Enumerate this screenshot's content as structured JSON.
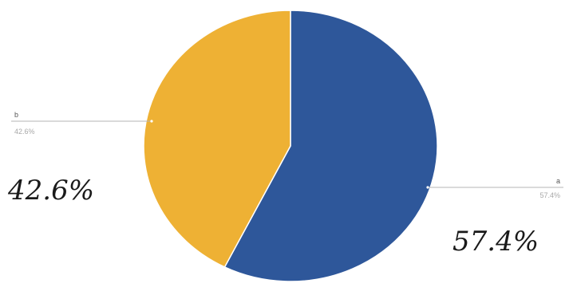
{
  "chart_data": {
    "type": "pie",
    "slices": [
      {
        "label": "a",
        "value": 57.4,
        "value_label": "57.4%",
        "color": "#2e579a"
      },
      {
        "label": "b",
        "value": 42.6,
        "value_label": "42.6%",
        "color": "#eeb134"
      }
    ],
    "start_angle_deg": 0,
    "direction": "clockwise",
    "annotations": [
      "42.6%",
      "57.4%"
    ]
  }
}
